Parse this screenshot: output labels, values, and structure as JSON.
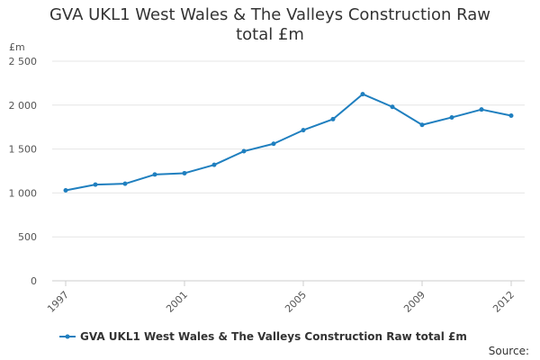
{
  "chart_data": {
    "type": "line",
    "title_lines": [
      "GVA UKL1 West Wales & The Valleys Construction Raw",
      "total £m"
    ],
    "ylabel": "£m",
    "ylim": [
      0,
      2500
    ],
    "yticks": [
      {
        "value": 0,
        "label": "0"
      },
      {
        "value": 500,
        "label": "500"
      },
      {
        "value": 1000,
        "label": "1 000"
      },
      {
        "value": 1500,
        "label": "1 500"
      },
      {
        "value": 2000,
        "label": "2 000"
      },
      {
        "value": 2500,
        "label": "2 500"
      }
    ],
    "xlim": [
      1997,
      2012
    ],
    "xticks": [
      {
        "value": 1997,
        "label": "1997"
      },
      {
        "value": 2001,
        "label": "2001"
      },
      {
        "value": 2005,
        "label": "2005"
      },
      {
        "value": 2009,
        "label": "2009"
      },
      {
        "value": 2012,
        "label": "2012"
      }
    ],
    "x": [
      1997,
      1998,
      1999,
      2000,
      2001,
      2002,
      2003,
      2004,
      2005,
      2006,
      2007,
      2008,
      2009,
      2010,
      2011,
      2012
    ],
    "series": [
      {
        "name": "GVA UKL1 West Wales & The Valleys Construction Raw total £m",
        "color": "#1f7fbf",
        "values": [
          1030,
          1095,
          1105,
          1210,
          1225,
          1320,
          1475,
          1560,
          1715,
          1840,
          2125,
          1980,
          1775,
          1860,
          1950,
          1880
        ]
      }
    ],
    "grid": true,
    "legend_position": "bottom-left",
    "source_label": "Source:"
  }
}
